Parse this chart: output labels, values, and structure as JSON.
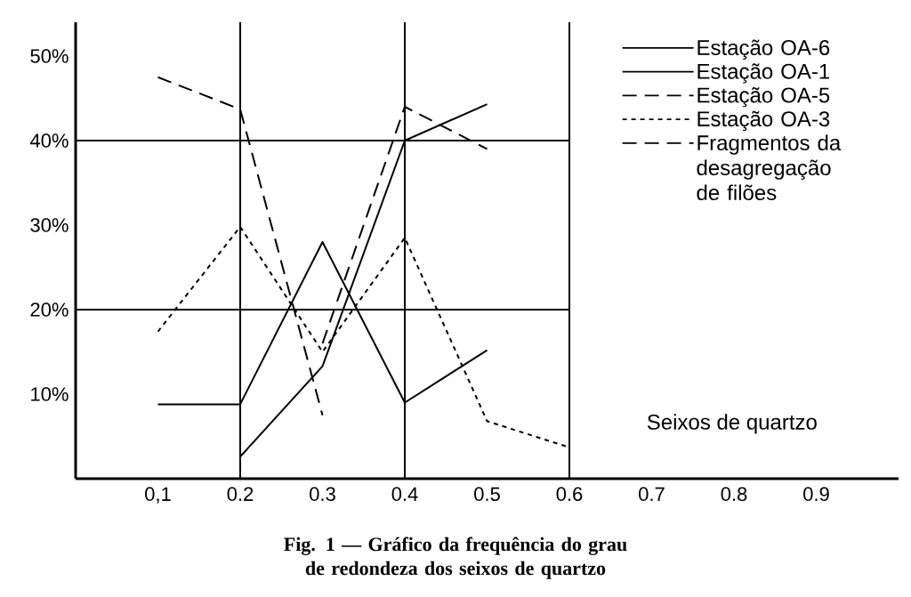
{
  "chart_data": {
    "type": "line",
    "title": "Fig. 1 — Gráfico da frequência do grau de redondeza dos seixos de quartzo",
    "xlim": [
      0,
      1.0
    ],
    "ylim": [
      0,
      54
    ],
    "xticks": [
      {
        "value": 0.1,
        "label": "0,1"
      },
      {
        "value": 0.2,
        "label": "0.2"
      },
      {
        "value": 0.3,
        "label": "0.3"
      },
      {
        "value": 0.4,
        "label": "0.4"
      },
      {
        "value": 0.5,
        "label": "0.5"
      },
      {
        "value": 0.6,
        "label": "0.6"
      },
      {
        "value": 0.7,
        "label": "0.7"
      },
      {
        "value": 0.8,
        "label": "0.8"
      },
      {
        "value": 0.9,
        "label": "0.9"
      }
    ],
    "yticks": [
      {
        "value": 10,
        "label": "10%"
      },
      {
        "value": 20,
        "label": "20%"
      },
      {
        "value": 30,
        "label": "30%"
      },
      {
        "value": 40,
        "label": "40%"
      },
      {
        "value": 50,
        "label": "50%"
      }
    ],
    "series": [
      {
        "name": "Estação OA-6",
        "color": "#000000",
        "line_style": "solid",
        "x": [
          0.1,
          0.2,
          0.3,
          0.4,
          0.5
        ],
        "values": [
          8.8,
          8.8,
          28,
          9,
          15.2
        ]
      },
      {
        "name": "Estação OA-1",
        "color": "#000000",
        "line_style": "solid",
        "x": [
          0.2,
          0.3,
          0.4,
          0.5
        ],
        "values": [
          2.6,
          13.3,
          40,
          44.3
        ]
      },
      {
        "name": "Estação OA-5",
        "color": "#000000",
        "line_style": "dashed",
        "x": [
          0.1,
          0.2,
          0.3
        ],
        "values": [
          47.5,
          43.7,
          7.5
        ]
      },
      {
        "name": "Estação OA-3",
        "color": "#000000",
        "line_style": "dotted",
        "x": [
          0.1,
          0.2,
          0.3,
          0.4,
          0.5,
          0.6
        ],
        "values": [
          17.4,
          29.8,
          15,
          28.5,
          6.8,
          3.7
        ]
      },
      {
        "name": "Fragmentos da desagregação de filões",
        "color": "#000000",
        "line_style": "dashed",
        "x": [
          0.3,
          0.4,
          0.5
        ],
        "values": [
          16,
          44,
          39
        ]
      }
    ],
    "ref_lines": [
      {
        "axis": "x",
        "value": 0.2
      },
      {
        "axis": "x",
        "value": 0.4
      },
      {
        "axis": "x",
        "value": 0.6
      },
      {
        "axis": "y",
        "value": 20
      },
      {
        "axis": "y",
        "value": 40
      }
    ],
    "annotations": [
      "Seixos de quartzo"
    ],
    "legend": "top right",
    "marker": "none"
  }
}
